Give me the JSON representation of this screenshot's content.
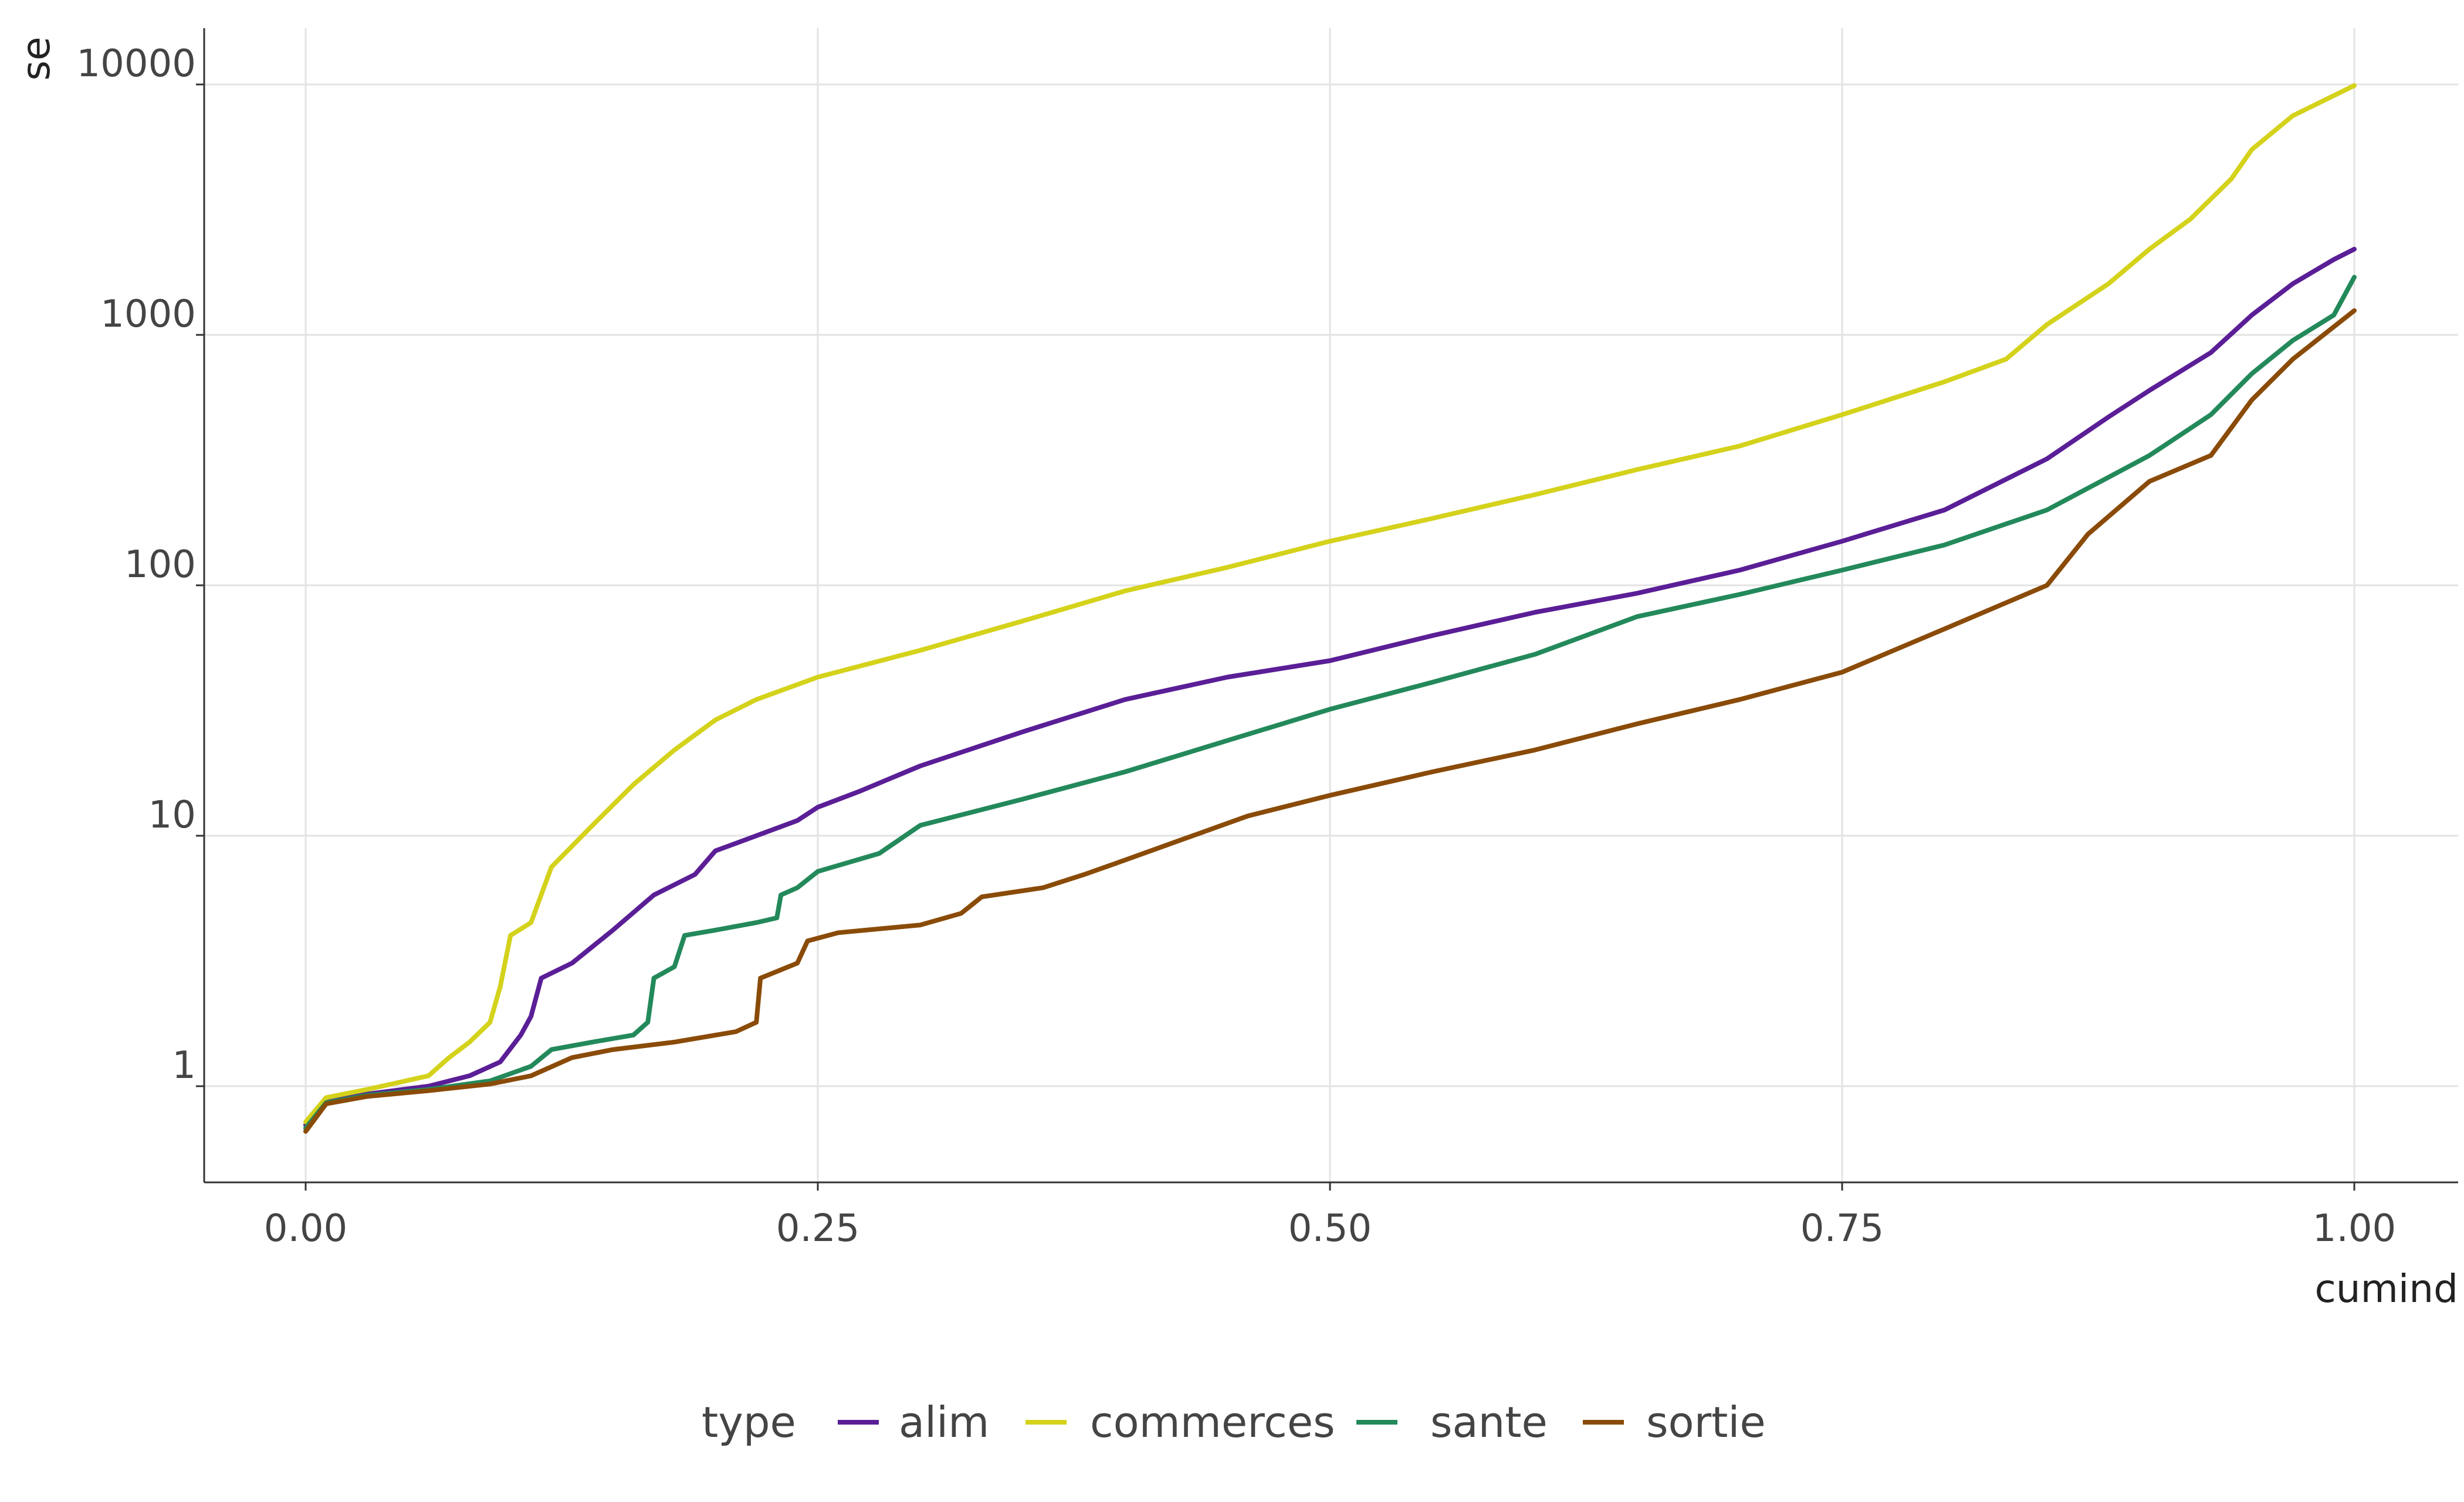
{
  "chart_data": {
    "type": "line",
    "title": "",
    "xlabel": "cumind",
    "ylabel": "se",
    "x_scale": "linear",
    "y_scale": "log",
    "xlim": [
      0,
      1
    ],
    "ylim": [
      0.4,
      15000
    ],
    "x_ticks": [
      0,
      0.25,
      0.5,
      0.75,
      1
    ],
    "x_tick_labels": [
      "0.00",
      "0.25",
      "0.50",
      "0.75",
      "1.00"
    ],
    "y_ticks": [
      1,
      10,
      100,
      1000,
      10000
    ],
    "y_tick_labels": [
      "1",
      "10",
      "100",
      "1000",
      "10000"
    ],
    "grid": true,
    "legend": {
      "title": "type",
      "placement": "bottom"
    },
    "series": [
      {
        "name": "alim",
        "color": "#5a1e96",
        "points": [
          [
            0,
            0.7
          ],
          [
            0.01,
            0.88
          ],
          [
            0.03,
            0.93
          ],
          [
            0.06,
            1.0
          ],
          [
            0.08,
            1.1
          ],
          [
            0.095,
            1.25
          ],
          [
            0.105,
            1.6
          ],
          [
            0.11,
            1.9
          ],
          [
            0.115,
            2.7
          ],
          [
            0.13,
            3.1
          ],
          [
            0.15,
            4.2
          ],
          [
            0.17,
            5.8
          ],
          [
            0.19,
            7.0
          ],
          [
            0.2,
            8.7
          ],
          [
            0.22,
            10.0
          ],
          [
            0.24,
            11.5
          ],
          [
            0.25,
            13.0
          ],
          [
            0.27,
            15.0
          ],
          [
            0.3,
            19.0
          ],
          [
            0.35,
            26.0
          ],
          [
            0.4,
            35.0
          ],
          [
            0.45,
            43.0
          ],
          [
            0.5,
            50.0
          ],
          [
            0.55,
            63.0
          ],
          [
            0.6,
            78.0
          ],
          [
            0.65,
            93.0
          ],
          [
            0.7,
            115.0
          ],
          [
            0.75,
            150.0
          ],
          [
            0.8,
            200.0
          ],
          [
            0.85,
            320.0
          ],
          [
            0.88,
            470.0
          ],
          [
            0.9,
            600.0
          ],
          [
            0.93,
            850.0
          ],
          [
            0.95,
            1200.0
          ],
          [
            0.97,
            1600.0
          ],
          [
            0.99,
            2000.0
          ],
          [
            1.0,
            2200.0
          ]
        ]
      },
      {
        "name": "commerces",
        "color": "#d4d21b",
        "points": [
          [
            0,
            0.72
          ],
          [
            0.01,
            0.9
          ],
          [
            0.03,
            0.97
          ],
          [
            0.06,
            1.1
          ],
          [
            0.07,
            1.3
          ],
          [
            0.08,
            1.5
          ],
          [
            0.09,
            1.8
          ],
          [
            0.095,
            2.5
          ],
          [
            0.1,
            4.0
          ],
          [
            0.11,
            4.5
          ],
          [
            0.12,
            7.5
          ],
          [
            0.14,
            11.0
          ],
          [
            0.16,
            16.0
          ],
          [
            0.18,
            22.0
          ],
          [
            0.2,
            29.0
          ],
          [
            0.22,
            35.0
          ],
          [
            0.25,
            43.0
          ],
          [
            0.3,
            55.0
          ],
          [
            0.35,
            72.0
          ],
          [
            0.4,
            95.0
          ],
          [
            0.45,
            118.0
          ],
          [
            0.5,
            150.0
          ],
          [
            0.55,
            185.0
          ],
          [
            0.6,
            230.0
          ],
          [
            0.65,
            290.0
          ],
          [
            0.7,
            360.0
          ],
          [
            0.75,
            480.0
          ],
          [
            0.8,
            650.0
          ],
          [
            0.83,
            800.0
          ],
          [
            0.85,
            1100.0
          ],
          [
            0.88,
            1600.0
          ],
          [
            0.9,
            2200.0
          ],
          [
            0.92,
            2900.0
          ],
          [
            0.94,
            4200.0
          ],
          [
            0.95,
            5500.0
          ],
          [
            0.97,
            7500.0
          ],
          [
            1.0,
            9900.0
          ]
        ]
      },
      {
        "name": "sante",
        "color": "#23895b",
        "points": [
          [
            0,
            0.68
          ],
          [
            0.01,
            0.86
          ],
          [
            0.03,
            0.92
          ],
          [
            0.06,
            0.97
          ],
          [
            0.09,
            1.05
          ],
          [
            0.11,
            1.2
          ],
          [
            0.12,
            1.4
          ],
          [
            0.14,
            1.5
          ],
          [
            0.16,
            1.6
          ],
          [
            0.167,
            1.8
          ],
          [
            0.17,
            2.7
          ],
          [
            0.18,
            3.0
          ],
          [
            0.185,
            4.0
          ],
          [
            0.2,
            4.2
          ],
          [
            0.22,
            4.5
          ],
          [
            0.23,
            4.7
          ],
          [
            0.232,
            5.8
          ],
          [
            0.24,
            6.2
          ],
          [
            0.25,
            7.2
          ],
          [
            0.28,
            8.5
          ],
          [
            0.3,
            11.0
          ],
          [
            0.35,
            14.0
          ],
          [
            0.4,
            18.0
          ],
          [
            0.45,
            24.0
          ],
          [
            0.5,
            32.0
          ],
          [
            0.55,
            41.0
          ],
          [
            0.6,
            53.0
          ],
          [
            0.65,
            75.0
          ],
          [
            0.7,
            92.0
          ],
          [
            0.75,
            115.0
          ],
          [
            0.8,
            145.0
          ],
          [
            0.85,
            200.0
          ],
          [
            0.88,
            270.0
          ],
          [
            0.9,
            330.0
          ],
          [
            0.93,
            480.0
          ],
          [
            0.95,
            700.0
          ],
          [
            0.97,
            950.0
          ],
          [
            0.99,
            1200.0
          ],
          [
            1.0,
            1700.0
          ]
        ]
      },
      {
        "name": "sortie",
        "color": "#8a4b08",
        "points": [
          [
            0,
            0.66
          ],
          [
            0.01,
            0.85
          ],
          [
            0.03,
            0.91
          ],
          [
            0.06,
            0.96
          ],
          [
            0.09,
            1.02
          ],
          [
            0.11,
            1.1
          ],
          [
            0.13,
            1.3
          ],
          [
            0.15,
            1.4
          ],
          [
            0.18,
            1.5
          ],
          [
            0.21,
            1.65
          ],
          [
            0.22,
            1.8
          ],
          [
            0.222,
            2.7
          ],
          [
            0.24,
            3.1
          ],
          [
            0.245,
            3.8
          ],
          [
            0.26,
            4.1
          ],
          [
            0.3,
            4.4
          ],
          [
            0.32,
            4.9
          ],
          [
            0.33,
            5.7
          ],
          [
            0.36,
            6.2
          ],
          [
            0.38,
            7.0
          ],
          [
            0.4,
            8.0
          ],
          [
            0.43,
            9.8
          ],
          [
            0.46,
            12.0
          ],
          [
            0.5,
            14.5
          ],
          [
            0.55,
            18.0
          ],
          [
            0.6,
            22.0
          ],
          [
            0.65,
            28.0
          ],
          [
            0.7,
            35.0
          ],
          [
            0.75,
            45.0
          ],
          [
            0.8,
            67.0
          ],
          [
            0.85,
            100.0
          ],
          [
            0.87,
            160.0
          ],
          [
            0.9,
            260.0
          ],
          [
            0.93,
            330.0
          ],
          [
            0.95,
            550.0
          ],
          [
            0.97,
            800.0
          ],
          [
            1.0,
            1250.0
          ]
        ]
      }
    ]
  }
}
